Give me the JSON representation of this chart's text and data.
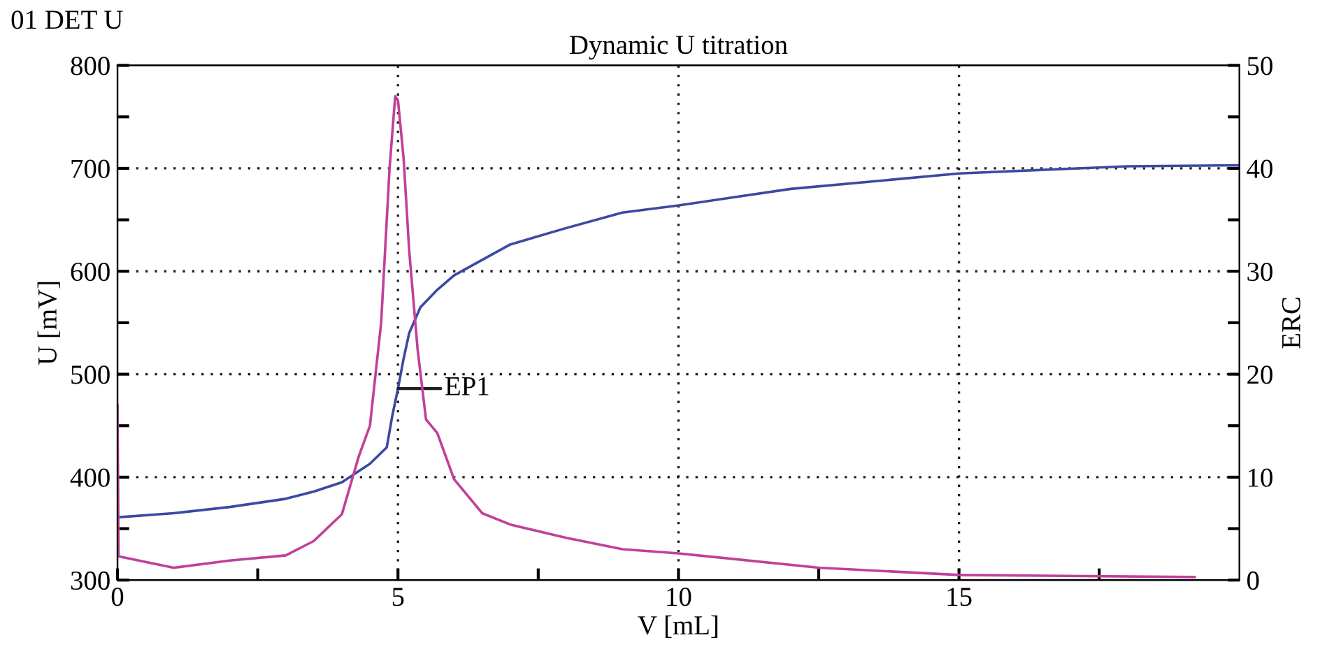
{
  "chart_data": {
    "type": "line",
    "title": "Dynamic U titration",
    "xlabel": "V [mL]",
    "ylabel": "U [mV]",
    "y2label": "ERC",
    "annotations": [
      "01 DET U",
      {
        "text": "EP1",
        "x": 5.0,
        "y": 486
      }
    ],
    "xlim": [
      0,
      20
    ],
    "xticks": [
      0,
      {
        "value": 2.5,
        "label": null
      },
      5,
      {
        "value": 7.5,
        "label": null
      },
      10,
      {
        "value": 12.5,
        "label": null
      },
      15,
      {
        "value": 17.5,
        "label": null
      }
    ],
    "ylim": [
      300,
      800
    ],
    "yticks": [
      300,
      {
        "value": 350,
        "label": null
      },
      400,
      {
        "value": 450,
        "label": null
      },
      500,
      {
        "value": 550,
        "label": null
      },
      600,
      {
        "value": 650,
        "label": null
      },
      700,
      {
        "value": 750,
        "label": null
      },
      800
    ],
    "y2lim": [
      0,
      50
    ],
    "y2ticks": [
      0,
      {
        "value": 5,
        "label": null
      },
      10,
      {
        "value": 15,
        "label": null
      },
      20,
      {
        "value": 25,
        "label": null
      },
      30,
      {
        "value": 35,
        "label": null
      },
      40,
      {
        "value": 45,
        "label": null
      },
      50
    ],
    "grid": true,
    "legend": false,
    "line_style": "solid",
    "marker": "none",
    "series": [
      {
        "color": "#3b4aa0",
        "x": [
          0,
          1,
          2,
          3,
          3.5,
          4,
          4.5,
          4.8,
          4.9,
          5.0,
          5.1,
          5.2,
          5.4,
          5.7,
          6,
          7,
          8,
          9,
          10,
          12,
          15,
          18,
          20
        ],
        "values": [
          361,
          365,
          371,
          379,
          386,
          395,
          413,
          429,
          460,
          486,
          515,
          540,
          565,
          582,
          596,
          626,
          642,
          657,
          664,
          680,
          695,
          702,
          703
        ]
      },
      {
        "color": "#c0409a",
        "axis": "y2",
        "x": [
          0,
          0.02,
          1,
          2,
          3,
          3.5,
          4,
          4.3,
          4.5,
          4.7,
          4.85,
          4.95,
          5.0,
          5.1,
          5.2,
          5.35,
          5.5,
          5.7,
          6,
          6.5,
          7,
          8,
          9,
          10,
          12.5,
          15,
          19.2
        ],
        "values": [
          17,
          2.3,
          1.2,
          1.9,
          2.4,
          3.8,
          6.4,
          12,
          15,
          25,
          40,
          47,
          46.6,
          41,
          32,
          22.4,
          15.6,
          14.3,
          9.8,
          6.5,
          5.4,
          4.1,
          3.0,
          2.6,
          1.2,
          0.5,
          0.3
        ]
      }
    ]
  }
}
